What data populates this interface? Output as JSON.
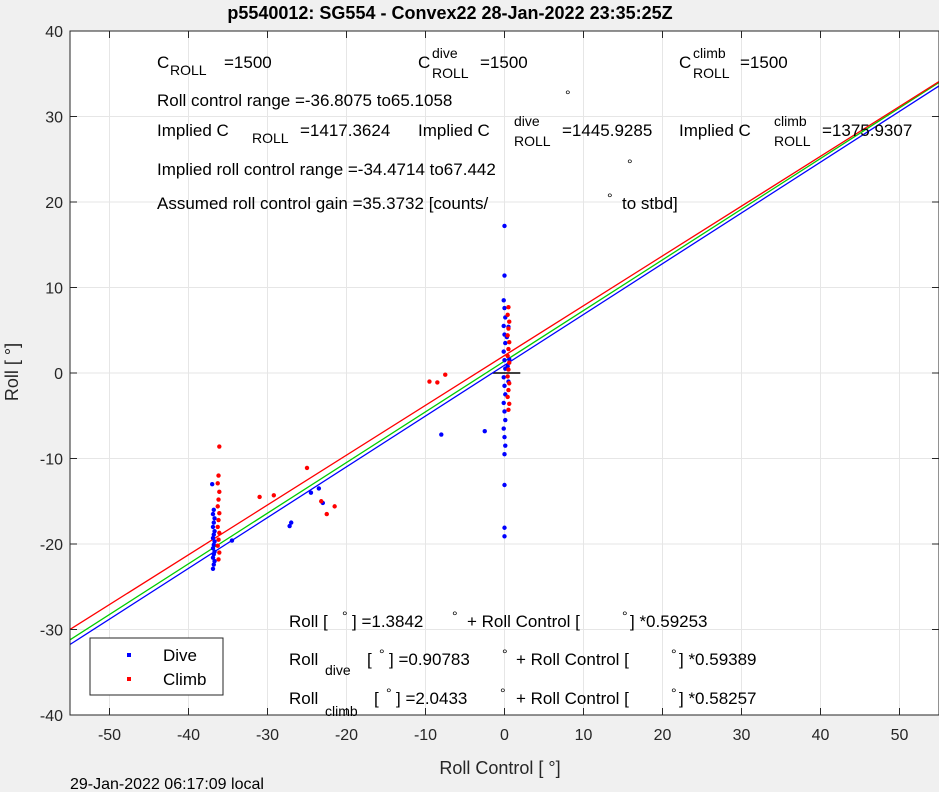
{
  "chart_data": {
    "type": "scatter",
    "title": "p5540012: SG554 - Convex22 28-Jan-2022 23:35:25Z",
    "xlabel": "Roll Control [   °]",
    "ylabel": "Roll [  °]",
    "xlim": [
      -55,
      55
    ],
    "ylim": [
      -40,
      40
    ],
    "xticks": [
      -50,
      -40,
      -30,
      -20,
      -10,
      0,
      10,
      20,
      30,
      40,
      50
    ],
    "yticks": [
      -40,
      -30,
      -20,
      -10,
      0,
      10,
      20,
      30,
      40
    ],
    "grid": true,
    "legend": {
      "position": "bottom-left",
      "entries": [
        "Dive",
        "Climb"
      ]
    },
    "colors": {
      "dive": "#0000ff",
      "climb": "#ff0000",
      "all_fit": "#00cc00"
    },
    "series": [
      {
        "name": "Dive",
        "points": [
          [
            -36.9,
            -22.9
          ],
          [
            -36.8,
            -22.4
          ],
          [
            -36.7,
            -22.0
          ],
          [
            -36.9,
            -21.6
          ],
          [
            -36.8,
            -21.2
          ],
          [
            -36.7,
            -20.9
          ],
          [
            -36.9,
            -20.5
          ],
          [
            -36.8,
            -20.1
          ],
          [
            -36.7,
            -19.7
          ],
          [
            -36.9,
            -19.3
          ],
          [
            -36.8,
            -18.9
          ],
          [
            -36.7,
            -18.5
          ],
          [
            -36.9,
            -18.0
          ],
          [
            -36.8,
            -17.5
          ],
          [
            -36.7,
            -17.0
          ],
          [
            -36.9,
            -16.5
          ],
          [
            -36.8,
            -16.0
          ],
          [
            -37.0,
            -13.0
          ],
          [
            -34.5,
            -19.6
          ],
          [
            -27.2,
            -17.9
          ],
          [
            -27.0,
            -17.5
          ],
          [
            -24.5,
            -14.0
          ],
          [
            -23.5,
            -13.5
          ],
          [
            -23.0,
            -15.2
          ],
          [
            -8.0,
            -7.2
          ],
          [
            -2.5,
            -6.8
          ],
          [
            0.0,
            17.2
          ],
          [
            0.0,
            11.4
          ],
          [
            -0.1,
            8.5
          ],
          [
            0.0,
            7.6
          ],
          [
            0.1,
            6.5
          ],
          [
            -0.1,
            5.5
          ],
          [
            0.0,
            4.5
          ],
          [
            0.1,
            3.5
          ],
          [
            -0.1,
            2.5
          ],
          [
            0.0,
            1.5
          ],
          [
            0.1,
            0.5
          ],
          [
            -0.1,
            -0.5
          ],
          [
            0.0,
            -1.5
          ],
          [
            0.1,
            -2.5
          ],
          [
            -0.1,
            -3.5
          ],
          [
            0.0,
            -4.5
          ],
          [
            0.1,
            -5.5
          ],
          [
            -0.1,
            -6.5
          ],
          [
            0.0,
            -7.5
          ],
          [
            0.1,
            -8.5
          ],
          [
            0.0,
            -9.5
          ],
          [
            0.0,
            -13.1
          ],
          [
            0.0,
            -18.1
          ],
          [
            0.0,
            -19.1
          ],
          [
            0.5,
            -1.0
          ],
          [
            0.4,
            0.8
          ],
          [
            0.6,
            1.6
          ],
          [
            0.3,
            4.2
          ],
          [
            0.5,
            5.4
          ]
        ]
      },
      {
        "name": "Climb",
        "points": [
          [
            -36.2,
            -21.8
          ],
          [
            -36.1,
            -21.0
          ],
          [
            -36.3,
            -20.2
          ],
          [
            -36.2,
            -19.5
          ],
          [
            -36.1,
            -18.7
          ],
          [
            -36.3,
            -18.0
          ],
          [
            -36.2,
            -17.2
          ],
          [
            -36.1,
            -16.4
          ],
          [
            -36.3,
            -15.6
          ],
          [
            -36.2,
            -14.8
          ],
          [
            -36.1,
            -13.9
          ],
          [
            -36.3,
            -12.9
          ],
          [
            -36.2,
            -12.0
          ],
          [
            -36.1,
            -8.6
          ],
          [
            -31.0,
            -14.5
          ],
          [
            -29.2,
            -14.3
          ],
          [
            -25.0,
            -11.1
          ],
          [
            -23.2,
            -15.0
          ],
          [
            -22.5,
            -16.5
          ],
          [
            -21.5,
            -15.6
          ],
          [
            -9.5,
            -1.0
          ],
          [
            -8.5,
            -1.1
          ],
          [
            -7.5,
            -0.2
          ],
          [
            0.5,
            7.7
          ],
          [
            0.4,
            6.8
          ],
          [
            0.6,
            6.0
          ],
          [
            0.5,
            5.2
          ],
          [
            0.4,
            4.4
          ],
          [
            0.6,
            3.6
          ],
          [
            0.5,
            2.8
          ],
          [
            0.4,
            2.0
          ],
          [
            0.6,
            1.2
          ],
          [
            0.5,
            0.4
          ],
          [
            0.4,
            -0.4
          ],
          [
            0.6,
            -1.2
          ],
          [
            0.5,
            -2.0
          ],
          [
            0.4,
            -2.8
          ],
          [
            0.6,
            -3.6
          ],
          [
            0.5,
            -4.3
          ]
        ]
      }
    ],
    "fits": [
      {
        "name": "all",
        "intercept": 1.3842,
        "slope": 0.59253,
        "color": "#00cc00"
      },
      {
        "name": "dive",
        "intercept": 0.90783,
        "slope": 0.59389,
        "color": "#0000ff"
      },
      {
        "name": "climb",
        "intercept": 2.0433,
        "slope": 0.58257,
        "color": "#ff0000"
      }
    ]
  },
  "annotations": {
    "c_roll": "C",
    "c_roll_sub": "ROLL",
    "c_roll_val": "=1500",
    "c_dive": "C",
    "c_dive_sup": "dive",
    "c_dive_sub": "ROLL",
    "c_dive_val": "=1500",
    "c_climb": "C",
    "c_climb_sup": "climb",
    "c_climb_sub": "ROLL",
    "c_climb_val": "=1500",
    "range": "Roll control range =-36.8075 to65.1058",
    "range_deg": "°",
    "implied_a": "Implied C",
    "implied_a_sub": "ROLL",
    "implied_a_val": "=1417.3624",
    "implied_b": "Implied C",
    "implied_b_sup": "dive",
    "implied_b_sub": "ROLL",
    "implied_b_val": "=1445.9285",
    "implied_c": "Implied C",
    "implied_c_sup": "climb",
    "implied_c_sub": "ROLL",
    "implied_c_val": "=1375.9307",
    "implied_range": "Implied roll control range =-34.4714 to67.442",
    "implied_range_deg": "°",
    "gain": "Assumed roll control gain =35.3732 [counts/",
    "gain_deg": "°",
    "gain_end": "to stbd]",
    "eq1_a": "Roll [",
    "eq1_deg1": "°",
    "eq1_b": "] =1.3842",
    "eq1_deg2": "°",
    "eq1_c": "+ Roll Control [",
    "eq1_deg3": "°",
    "eq1_d": "] *0.59253",
    "eq2_a": "Roll",
    "eq2_sub": "dive",
    "eq2_b": "[",
    "eq2_deg1": "°",
    "eq2_c": "] =0.90783",
    "eq2_deg2": "°",
    "eq2_d": "+ Roll Control [",
    "eq2_deg3": "°",
    "eq2_e": "] *0.59389",
    "eq3_a": "Roll",
    "eq3_sub": "climb",
    "eq3_b": "[",
    "eq3_deg1": "°",
    "eq3_c": "] =2.0433",
    "eq3_deg2": "°",
    "eq3_d": "+ Roll Control [",
    "eq3_deg3": "°",
    "eq3_e": "] *0.58257"
  },
  "footer": "29-Jan-2022 06:17:09 local"
}
